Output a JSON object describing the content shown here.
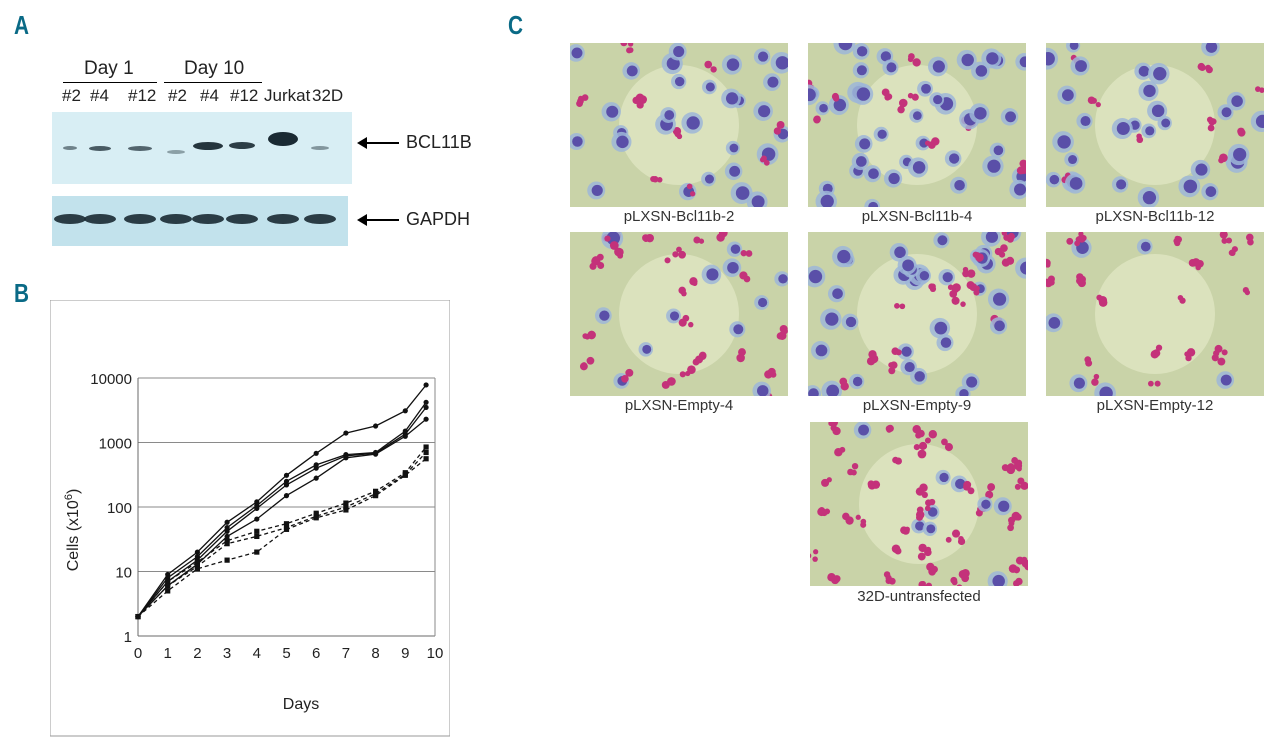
{
  "panels": {
    "a": "A",
    "b": "B",
    "c": "C"
  },
  "blot": {
    "groups": [
      {
        "label": "Day 1"
      },
      {
        "label": "Day 10"
      }
    ],
    "lanes": [
      "#2",
      "#4",
      "#12",
      "#2",
      "#4",
      "#12",
      "Jurkat",
      "32D"
    ],
    "bcl11b_label": "BCL11B",
    "gapdh_label": "GAPDH"
  },
  "chart_data": {
    "type": "line",
    "title": "",
    "xlabel": "Days",
    "ylabel": "Cells (x10⁶)",
    "ylabel_base": "Cells (x10",
    "ylabel_exp": "6",
    "ylabel_close": ")",
    "yscale": "log",
    "ylim": [
      1,
      10000
    ],
    "yticks": [
      "1",
      "10",
      "100",
      "1000",
      "10000"
    ],
    "xticks": [
      "0",
      "1",
      "2",
      "3",
      "4",
      "5",
      "6",
      "7",
      "8",
      "9",
      "10"
    ],
    "grid": "horizontal",
    "series": [
      {
        "style": "solid",
        "marker": "circle",
        "x": [
          0,
          1,
          2,
          3,
          4,
          5,
          6,
          7,
          8,
          9,
          9.7
        ],
        "y": [
          2,
          9,
          20,
          58,
          120,
          310,
          680,
          1400,
          1800,
          3100,
          7800
        ]
      },
      {
        "style": "solid",
        "marker": "circle",
        "x": [
          0,
          1,
          2,
          3,
          4,
          5,
          6,
          7,
          8,
          9,
          9.7
        ],
        "y": [
          2,
          8,
          17,
          48,
          105,
          250,
          450,
          650,
          700,
          1500,
          4200
        ]
      },
      {
        "style": "solid",
        "marker": "circle",
        "x": [
          0,
          1,
          2,
          3,
          4,
          5,
          6,
          7,
          8,
          9,
          9.7
        ],
        "y": [
          2,
          7,
          15,
          42,
          95,
          220,
          400,
          620,
          680,
          1350,
          3500
        ]
      },
      {
        "style": "solid",
        "marker": "circle",
        "x": [
          0,
          1,
          2,
          3,
          4,
          5,
          6,
          7,
          8,
          9,
          9.7
        ],
        "y": [
          2,
          6,
          13,
          35,
          65,
          150,
          280,
          580,
          660,
          1250,
          2300
        ]
      },
      {
        "style": "dashed",
        "marker": "square",
        "x": [
          0,
          1,
          2,
          3,
          4,
          5,
          6,
          7,
          8,
          9,
          9.7
        ],
        "y": [
          2,
          7,
          14,
          30,
          42,
          55,
          80,
          115,
          175,
          340,
          850
        ]
      },
      {
        "style": "dashed",
        "marker": "square",
        "x": [
          0,
          1,
          2,
          3,
          4,
          5,
          6,
          7,
          8,
          9,
          9.7
        ],
        "y": [
          2,
          6,
          12,
          27,
          35,
          48,
          72,
          100,
          160,
          320,
          700
        ]
      },
      {
        "style": "dashed",
        "marker": "square",
        "x": [
          0,
          1,
          2,
          3,
          4,
          5,
          6,
          7,
          8,
          9,
          9.7
        ],
        "y": [
          2,
          5,
          11,
          15,
          20,
          45,
          68,
          90,
          150,
          310,
          560
        ]
      }
    ]
  },
  "micrographs": [
    {
      "caption": "pLXSN-Bcl11b-2",
      "density": "medium",
      "type": "blast"
    },
    {
      "caption": "pLXSN-Bcl11b-4",
      "density": "high",
      "type": "blast"
    },
    {
      "caption": "pLXSN-Bcl11b-12",
      "density": "medium",
      "type": "blast"
    },
    {
      "caption": "pLXSN-Empty-4",
      "density": "medium",
      "type": "mature"
    },
    {
      "caption": "pLXSN-Empty-9",
      "density": "high",
      "type": "mixed"
    },
    {
      "caption": "pLXSN-Empty-12",
      "density": "low",
      "type": "mature"
    },
    {
      "caption": "32D-untransfected",
      "density": "high",
      "type": "mature"
    }
  ],
  "colors": {
    "panel_letter": "#0a6a86",
    "slide_bg": "#c9d3a8",
    "cell_blast": "#5a4fa8",
    "cell_mature": "#c4327a",
    "cytoplasm": "#9db6d8"
  }
}
